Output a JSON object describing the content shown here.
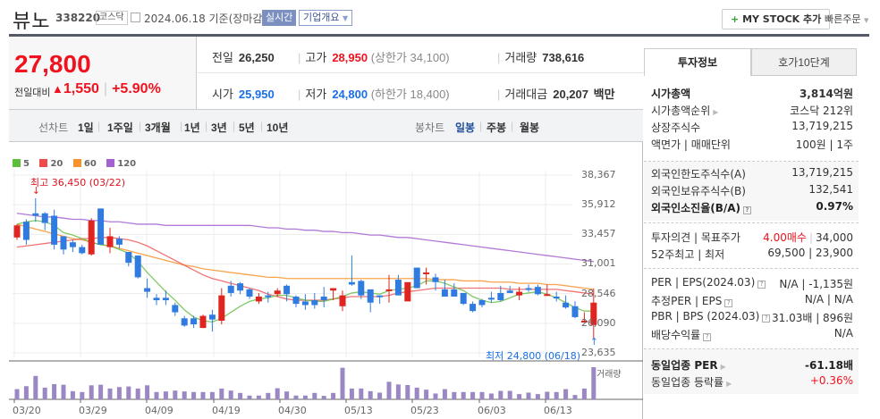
{
  "header": {
    "name": "뷰노",
    "code": "338220",
    "market": "코스닥",
    "date": "2024.06.18 기준(장마감)",
    "realtime_label": "실시간",
    "company_info_label": "기업개요",
    "mystock_plus": "+",
    "mystock_label": "MY STOCK 추가",
    "quick_order_label": "빠른주문"
  },
  "price": {
    "current": "27,800",
    "change_label": "전일대비",
    "change_arrow": "▲",
    "change": "1,550",
    "change_pct": "+5.90%"
  },
  "info": {
    "prev_label": "전일",
    "prev": "26,250",
    "high_label": "고가",
    "high": "28,950",
    "upper_limit_label": "(상한가",
    "upper_limit": "34,100)",
    "volume_label": "거래량",
    "volume": "738,616",
    "open_label": "시가",
    "open": "25,950",
    "low_label": "저가",
    "low": "24,800",
    "lower_limit_label": "(하한가",
    "lower_limit": "18,400)",
    "amount_label": "거래대금",
    "amount": "20,207",
    "amount_unit": "백만"
  },
  "period_bar": {
    "line_label": "선차트",
    "line_items": [
      "1일",
      "1주일",
      "3개월",
      "1년",
      "3년",
      "5년",
      "10년"
    ],
    "candle_label": "봉차트",
    "candle_items": [
      {
        "label": "일봉",
        "selected": true
      },
      {
        "label": "주봉",
        "selected": false
      },
      {
        "label": "월봉",
        "selected": false
      }
    ]
  },
  "colors": {
    "up": "#e0241f",
    "down": "#2f7be0",
    "ma5": "#6cc04a",
    "ma20": "#ef5a5a",
    "ma60": "#f7922c",
    "ma120": "#a461d0",
    "volume": "#9b87c4"
  },
  "chart_data": {
    "type": "candlestick",
    "legend": [
      {
        "label": "5",
        "color": "#5bbf3c"
      },
      {
        "label": "20",
        "color": "#ef4b4b"
      },
      {
        "label": "60",
        "color": "#f7922c"
      },
      {
        "label": "120",
        "color": "#a461d0"
      }
    ],
    "y_ticks": [
      "38,367",
      "35,912",
      "33,457",
      "31,001",
      "28,546",
      "26,090",
      "23,635"
    ],
    "ylim": [
      23635,
      38367
    ],
    "x_ticks": [
      "03/20",
      "03/29",
      "04/09",
      "04/19",
      "04/30",
      "05/13",
      "05/23",
      "06/03",
      "06/13"
    ],
    "high_annotation": "최고 36,450 (03/22)",
    "low_annotation": "최저 24,800 (06/18)",
    "volume_label": "거래량",
    "candles": [
      [
        33200,
        34300,
        33000,
        34200
      ],
      [
        34500,
        34700,
        32600,
        33000
      ],
      [
        35200,
        36450,
        34500,
        35000
      ],
      [
        35200,
        35300,
        33800,
        34400
      ],
      [
        35000,
        35500,
        32200,
        32600
      ],
      [
        33300,
        33300,
        31800,
        32200
      ],
      [
        32800,
        33000,
        32000,
        32400
      ],
      [
        32400,
        32600,
        31800,
        31900
      ],
      [
        31800,
        34800,
        31700,
        34600
      ],
      [
        35600,
        35600,
        32600,
        32600
      ],
      [
        32400,
        34000,
        31900,
        33300
      ],
      [
        33100,
        33300,
        32300,
        32600
      ],
      [
        32000,
        32000,
        30800,
        31100
      ],
      [
        31700,
        31700,
        29800,
        29900
      ],
      [
        29000,
        29800,
        28200,
        28700
      ],
      [
        28200,
        28500,
        27600,
        28000
      ],
      [
        28200,
        28800,
        27600,
        28000
      ],
      [
        27600,
        27800,
        26700,
        27000
      ],
      [
        26500,
        26700,
        25800,
        25900
      ],
      [
        26500,
        26700,
        25700,
        26000
      ],
      [
        25700,
        26800,
        25700,
        26700
      ],
      [
        26800,
        27200,
        25400,
        26400
      ],
      [
        26300,
        29000,
        26000,
        28400
      ],
      [
        29200,
        29600,
        28300,
        28600
      ],
      [
        29400,
        29500,
        28500,
        28800
      ],
      [
        28900,
        29000,
        28100,
        28300
      ],
      [
        27900,
        28600,
        27700,
        28300
      ],
      [
        28400,
        28700,
        27800,
        28300
      ],
      [
        28500,
        29000,
        28300,
        28800
      ],
      [
        29200,
        29300,
        27900,
        28500
      ],
      [
        28300,
        28400,
        27400,
        27700
      ],
      [
        27900,
        28500,
        27200,
        27600
      ],
      [
        28000,
        28600,
        27300,
        27600
      ],
      [
        28300,
        29100,
        27400,
        28000
      ],
      [
        28800,
        29000,
        28000,
        29000
      ],
      [
        27500,
        28800,
        27100,
        28400
      ],
      [
        29500,
        31700,
        29200,
        29300
      ],
      [
        29600,
        29700,
        28100,
        28400
      ],
      [
        28900,
        28900,
        27000,
        27800
      ],
      [
        28400,
        28400,
        27700,
        28300
      ],
      [
        28800,
        30100,
        27800,
        28900
      ],
      [
        29700,
        30100,
        28400,
        28400
      ],
      [
        27900,
        28400,
        28000,
        29500
      ],
      [
        30700,
        30700,
        29400,
        29000
      ],
      [
        30300,
        30700,
        29300,
        30300
      ],
      [
        29900,
        30200,
        28800,
        29500
      ],
      [
        28900,
        29700,
        28500,
        28300
      ],
      [
        28900,
        29400,
        28400,
        28300
      ],
      [
        28600,
        28600,
        27600,
        27700
      ],
      [
        27700,
        27900,
        27000,
        27100
      ],
      [
        28000,
        28100,
        27400,
        27600
      ],
      [
        28200,
        28700,
        27800,
        28100
      ],
      [
        28600,
        29200,
        27900,
        28000
      ],
      [
        28800,
        29200,
        28600,
        28600
      ],
      [
        28400,
        29100,
        28000,
        28700
      ],
      [
        29000,
        29300,
        28700,
        28900
      ],
      [
        29100,
        29300,
        28400,
        28500
      ],
      [
        28400,
        29300,
        28400,
        28500
      ],
      [
        28300,
        28700,
        27900,
        28200
      ],
      [
        27800,
        28400,
        27300,
        27400
      ],
      [
        27500,
        27900,
        26500,
        26600
      ],
      [
        26300,
        27000,
        26300,
        26300
      ],
      [
        25950,
        28950,
        24800,
        27800
      ]
    ],
    "volumes": [
      35,
      45,
      80,
      40,
      52,
      50,
      28,
      25,
      48,
      50,
      37,
      42,
      44,
      37,
      48,
      25,
      27,
      30,
      27,
      25,
      25,
      25,
      37,
      30,
      22,
      13,
      13,
      22,
      38,
      27,
      13,
      13,
      22,
      12,
      22,
      108,
      37,
      37,
      28,
      23,
      60,
      51,
      49,
      40,
      33,
      20,
      35,
      25,
      25,
      25,
      25,
      20,
      29,
      29,
      18,
      23,
      18,
      26,
      25,
      35,
      15,
      37,
      110
    ],
    "ma": {
      "ma5": [
        34300,
        34500,
        34600,
        34500,
        34200,
        33600,
        33400,
        33100,
        32800,
        32600,
        32500,
        32200,
        31900,
        31200,
        30300,
        29500,
        28700,
        28000,
        27200,
        26600,
        26300,
        26200,
        26500,
        27000,
        27500,
        27900,
        28100,
        28200,
        28400,
        28400,
        28200,
        28000,
        27900,
        27900,
        28100,
        28300,
        28600,
        28700,
        28600,
        28500,
        28800,
        28900,
        29000,
        29200,
        29600,
        29600,
        29400,
        29100,
        28800,
        28300,
        28000,
        27800,
        27900,
        28200,
        28500,
        28600,
        28700,
        28500,
        28200,
        27800,
        27400,
        27100,
        27100
      ],
      "ma20": [
        32400,
        32500,
        32600,
        32700,
        32800,
        32900,
        33000,
        33100,
        33100,
        33200,
        33200,
        33100,
        33000,
        32800,
        32500,
        32100,
        31700,
        31300,
        30900,
        30500,
        30100,
        29800,
        29600,
        29400,
        29200,
        29000,
        28800,
        28500,
        28300,
        28100,
        28000,
        28000,
        28000,
        28000,
        28100,
        28200,
        28300,
        28300,
        28300,
        28300,
        28400,
        28600,
        28700,
        28800,
        28900,
        29000,
        29000,
        29000,
        29000,
        29000,
        29000,
        29000,
        29000,
        28900,
        28900,
        28900,
        28900,
        28900,
        28900,
        28800,
        28700,
        28600,
        28500
      ],
      "ma60": [
        34300,
        34100,
        33900,
        33700,
        33500,
        33300,
        33100,
        33000,
        32800,
        32600,
        32500,
        32300,
        32100,
        31900,
        31700,
        31500,
        31300,
        31100,
        30900,
        30800,
        30600,
        30500,
        30400,
        30300,
        30200,
        30100,
        30000,
        29900,
        29900,
        29800,
        29800,
        29800,
        29800,
        29800,
        29800,
        29800,
        29800,
        29800,
        29800,
        29800,
        29800,
        29800,
        29800,
        29800,
        29800,
        29700,
        29700,
        29700,
        29600,
        29600,
        29600,
        29500,
        29500,
        29500,
        29400,
        29400,
        29400,
        29300,
        29300,
        29200,
        29100,
        29000,
        28900
      ],
      "ma120": [
        35200,
        35100,
        35000,
        34900,
        34900,
        34800,
        34700,
        34700,
        34600,
        34600,
        34500,
        34500,
        34400,
        34300,
        34300,
        34300,
        34200,
        34200,
        34200,
        34200,
        34200,
        34200,
        34200,
        34200,
        34200,
        34200,
        34100,
        34000,
        34000,
        33900,
        33900,
        33800,
        33800,
        33700,
        33700,
        33600,
        33600,
        33500,
        33400,
        33400,
        33300,
        33200,
        33200,
        33100,
        33000,
        32900,
        32800,
        32700,
        32600,
        32500,
        32400,
        32300,
        32200,
        32100,
        32000,
        31900,
        31800,
        31700,
        31600,
        31500,
        31400,
        31300,
        31200
      ]
    }
  },
  "right_panel": {
    "tabs": [
      {
        "label": "투자정보",
        "selected": true
      },
      {
        "label": "호가10단계",
        "selected": false
      }
    ],
    "sec1": [
      {
        "k": "시가총액",
        "v": "3,814억원",
        "bold": true
      },
      {
        "k": "시가총액순위",
        "v": "코스닥 212위",
        "arrow": true
      },
      {
        "k": "상장주식수",
        "v": "13,719,215"
      },
      {
        "k": "액면가 | 매매단위",
        "v": "100원 | 1주"
      }
    ],
    "sec2": [
      {
        "k": "외국인한도주식수(A)",
        "v": "13,719,215"
      },
      {
        "k": "외국인보유주식수(B)",
        "v": "132,541"
      },
      {
        "k": "외국인소진율(B/A)",
        "v": "0.97%",
        "bold": true,
        "help": true
      }
    ],
    "sec3": [
      {
        "k": "투자의견 | 목표주가",
        "v_red": "4.00매수",
        "v": "34,000"
      },
      {
        "k": "52주최고 | 최저",
        "v": "69,500 | 23,900"
      }
    ],
    "sec4": [
      {
        "k": "PER | EPS(2024.03)",
        "v": "N/A | -1,135원",
        "help": true
      },
      {
        "k": "추정PER | EPS",
        "v": "N/A | N/A",
        "help": true
      },
      {
        "k": "PBR | BPS (2024.03)",
        "v": "31.03배 | 896원",
        "help": true
      },
      {
        "k": "배당수익률",
        "v": "N/A",
        "help": true
      }
    ],
    "sec5": [
      {
        "k": "동일업종 PER",
        "v": "-61.18배",
        "bold": true,
        "arrow": true
      },
      {
        "k": "동일업종 등락률",
        "v": "+0.36%",
        "red": true,
        "arrow": true
      }
    ]
  }
}
